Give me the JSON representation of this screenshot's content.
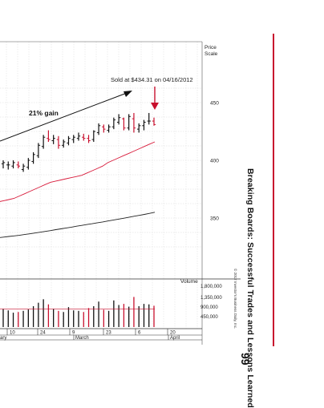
{
  "book": {
    "running_title": "Breaking Boards: Successful Trades and Lessons Learned",
    "page_number": "99",
    "copyright": "© 2012 Investor's Business Daily, Inc.",
    "accent_color": "#c8102e"
  },
  "chart_data": {
    "type": "ohlc",
    "price_scale_label": "Price\nScale",
    "y_ticks": [
      350,
      400,
      450
    ],
    "ylim": [
      322,
      470
    ],
    "grid": true,
    "annotations": {
      "sell_label": "Sold at $434.31 on 04/16/2012",
      "gain_label": "21% gain"
    },
    "volume_panel": {
      "label": "Volume",
      "ticks": [
        "1,800,000",
        "1,350,000",
        "900,000",
        "450,000"
      ]
    },
    "x_axis": {
      "day_ticks": [
        "10",
        "24",
        "9",
        "23",
        "6",
        "20"
      ],
      "month_labels": [
        "ary",
        "March",
        "April"
      ]
    },
    "series": [
      {
        "kind": "price",
        "values": [
          [
            397,
            400,
            393,
            398
          ],
          [
            396,
            399,
            392,
            396
          ],
          [
            395,
            400,
            393,
            398
          ],
          [
            396,
            399,
            393,
            395
          ],
          [
            392,
            397,
            390,
            395
          ],
          [
            394,
            402,
            392,
            400
          ],
          [
            399,
            407,
            397,
            405
          ],
          [
            404,
            415,
            402,
            413
          ],
          [
            412,
            422,
            410,
            420
          ],
          [
            419,
            426,
            416,
            418
          ],
          [
            417,
            422,
            414,
            419
          ],
          [
            418,
            421,
            410,
            413
          ],
          [
            413,
            418,
            411,
            416
          ],
          [
            415,
            421,
            413,
            419
          ],
          [
            418,
            422,
            415,
            420
          ],
          [
            419,
            424,
            417,
            421
          ],
          [
            420,
            423,
            417,
            419
          ],
          [
            419,
            422,
            415,
            417
          ],
          [
            418,
            426,
            416,
            425
          ],
          [
            424,
            432,
            422,
            430
          ],
          [
            429,
            431,
            424,
            427
          ],
          [
            426,
            431,
            424,
            429
          ],
          [
            429,
            437,
            427,
            435
          ],
          [
            433,
            440,
            431,
            437
          ],
          [
            436,
            437,
            426,
            428
          ],
          [
            428,
            440,
            426,
            438
          ],
          [
            436,
            441,
            424,
            428
          ],
          [
            427,
            432,
            424,
            430
          ],
          [
            430,
            435,
            426,
            433
          ],
          [
            434,
            441,
            431,
            434
          ],
          [
            434,
            437,
            430,
            431
          ]
        ]
      },
      {
        "kind": "ma_50",
        "color": "#d81b3b",
        "values": [
          364,
          365,
          366,
          367,
          369,
          371,
          373,
          375,
          377,
          379,
          381,
          382,
          383,
          384,
          385,
          386,
          387,
          389,
          391,
          393,
          395,
          398,
          400,
          402,
          404,
          406,
          408,
          410,
          412,
          414,
          416
        ]
      },
      {
        "kind": "ma_200",
        "color": "#222222",
        "values": [
          333,
          333.5,
          334,
          334.5,
          335,
          335.7,
          336.3,
          337,
          337.7,
          338.4,
          339.1,
          339.9,
          340.6,
          341.4,
          342.1,
          342.9,
          343.6,
          344.4,
          345.1,
          345.9,
          346.6,
          347.4,
          348.2,
          349.0,
          349.8,
          350.6,
          351.5,
          352.3,
          353.1,
          354.0,
          355.0
        ]
      },
      {
        "kind": "volume",
        "values": [
          780000,
          720000,
          620000,
          650000,
          700000,
          760000,
          900000,
          1050000,
          1200000,
          980000,
          780000,
          700000,
          650000,
          860000,
          720000,
          700000,
          650000,
          820000,
          900000,
          1100000,
          750000,
          700000,
          1150000,
          950000,
          1000000,
          880000,
          1300000,
          900000,
          1000000,
          980000,
          920000
        ]
      }
    ]
  }
}
